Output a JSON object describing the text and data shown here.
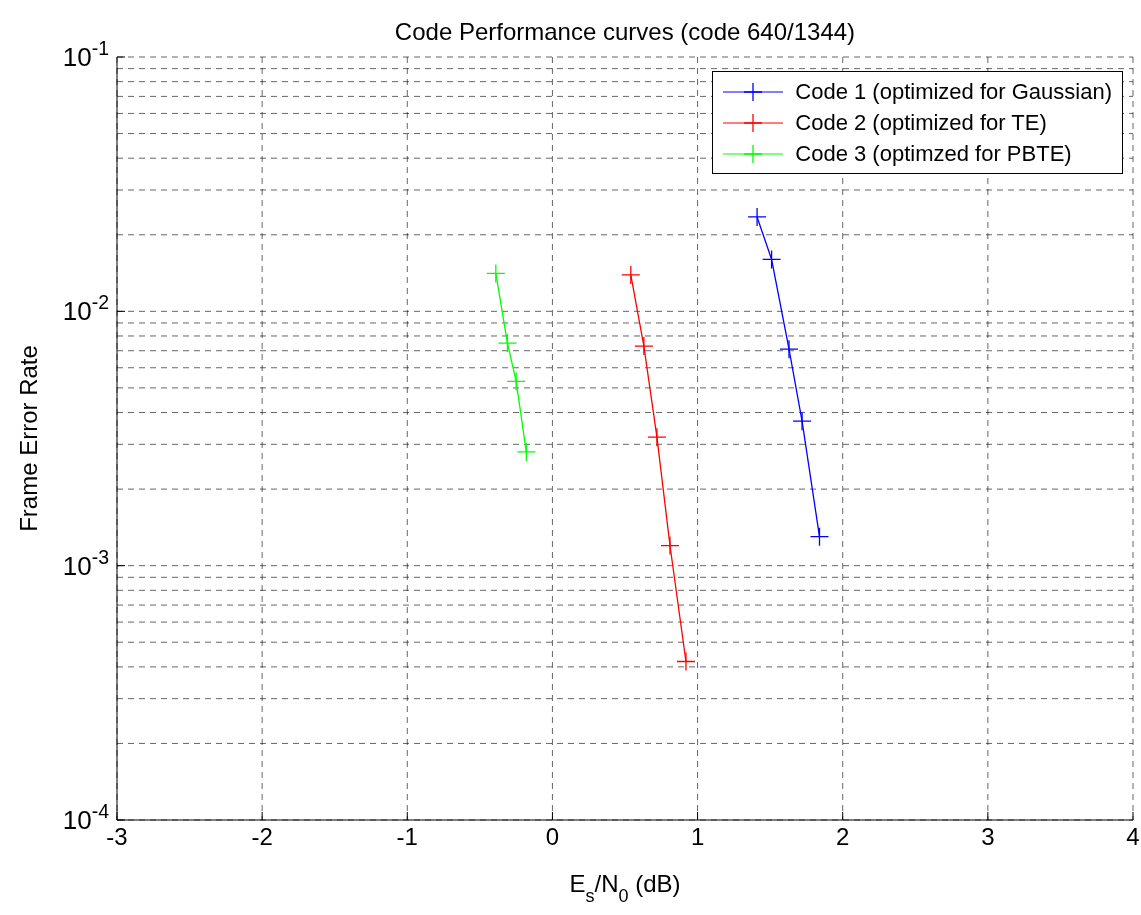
{
  "chart_data": {
    "type": "line",
    "title": "Code Performance curves (code 640/1344)",
    "xlabel": "E$_{s}$/N$_{0}$ (dB)",
    "ylabel": "Frame Error Rate",
    "series": [
      {
        "name": "Code 1 (optimized for Gaussian)",
        "color": "#0000ff",
        "x": [
          1.41,
          1.51,
          1.63,
          1.72,
          1.84
        ],
        "values": [
          0.0235,
          0.016,
          0.0071,
          0.0037,
          0.0013
        ]
      },
      {
        "name": "Code 2 (optimized for TE)",
        "color": "#ff0000",
        "x": [
          0.54,
          0.63,
          0.72,
          0.81,
          0.92
        ],
        "values": [
          0.0139,
          0.0073,
          0.0032,
          0.0012,
          0.00042
        ]
      },
      {
        "name": "Code 3 (optimzed for PBTE)",
        "color": "#00ff00",
        "x": [
          -0.39,
          -0.31,
          -0.25,
          -0.18
        ],
        "values": [
          0.0141,
          0.0075,
          0.0053,
          0.0028
        ]
      }
    ],
    "xlim": [
      -3,
      4
    ],
    "xticks": [
      -3,
      -2,
      -1,
      0,
      1,
      2,
      3,
      4
    ],
    "ylim": [
      0.0001,
      0.1
    ],
    "yticks": [
      {
        "value": 0.0001,
        "label": "10$^{-4}$"
      },
      {
        "value": 0.001,
        "label": "10$^{-3}$"
      },
      {
        "value": 0.01,
        "label": "10$^{-2}$"
      },
      {
        "value": 0.1,
        "label": "10$^{-1}$"
      }
    ],
    "log": "y",
    "grid": true,
    "legend": "top right",
    "marker": "cross",
    "line_style": "solid"
  }
}
